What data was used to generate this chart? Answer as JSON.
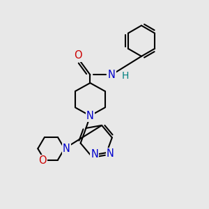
{
  "bg_color": "#e8e8e8",
  "bond_color": "#000000",
  "N_color": "#0000cc",
  "O_color": "#cc0000",
  "H_color": "#008080",
  "line_width": 1.5,
  "font_size": 10.5,
  "fig_w": 3.0,
  "fig_h": 3.0,
  "dpi": 100,
  "xlim": [
    0,
    10
  ],
  "ylim": [
    0,
    10
  ]
}
